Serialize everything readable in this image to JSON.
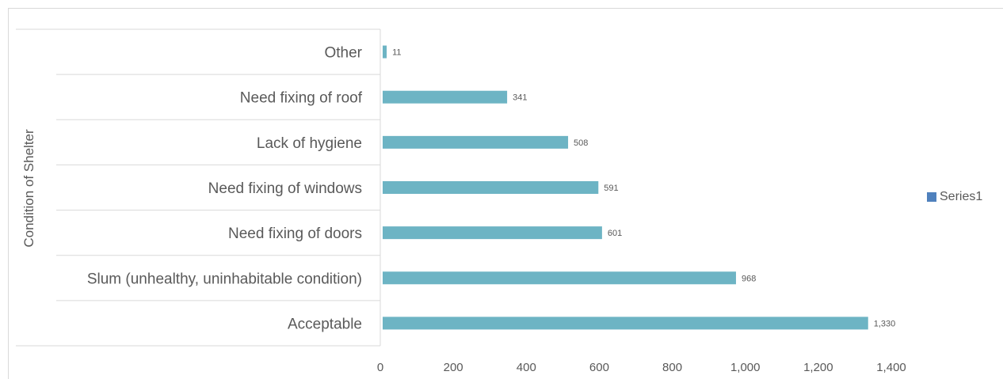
{
  "chart_data": {
    "type": "bar",
    "orientation": "horizontal",
    "categories": [
      "Other",
      "Need fixing of roof",
      "Lack of hygiene",
      "Need fixing of windows",
      "Need fixing of doors",
      "Slum (unhealthy, uninhabitable condition)",
      "Acceptable"
    ],
    "series": [
      {
        "name": "Series1",
        "values": [
          11,
          341,
          508,
          591,
          601,
          968,
          1330
        ]
      }
    ],
    "data_labels": [
      "11",
      "341",
      "508",
      "591",
      "601",
      "968",
      "1,330"
    ],
    "x_ticks": [
      "0",
      "200",
      "400",
      "600",
      "800",
      "1,000",
      "1,200",
      "1,400"
    ],
    "x_tick_values": [
      0,
      200,
      400,
      600,
      800,
      1000,
      1200,
      1400
    ],
    "xlim": [
      0,
      1400
    ],
    "ylabel": "Condition of Shelter",
    "xlabel": "",
    "grid": false,
    "legend_position": "right",
    "colors": {
      "bar": "#6db4c4",
      "legend_swatch": "#4f81bd",
      "text": "#595959",
      "lines": "#d9d9d9"
    }
  }
}
